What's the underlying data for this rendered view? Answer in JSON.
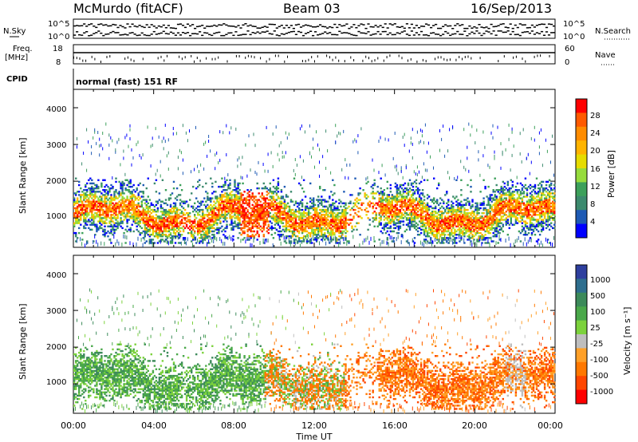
{
  "header": {
    "station": "McMurdo (fitACF)",
    "beam": "Beam 03",
    "date": "16/Sep/2013"
  },
  "sky_panel": {
    "left_label": "N.Sky",
    "right_label": "N.Search",
    "left_ticks": [
      "10^5",
      "10^0"
    ],
    "right_ticks": [
      "10^5",
      "10^0"
    ]
  },
  "freq_panel": {
    "left_label_1": "Freq.",
    "left_label_2": "[MHz]",
    "left_ticks": [
      "18",
      "8"
    ],
    "right_label": "Nave",
    "right_ticks": [
      "60",
      "0"
    ]
  },
  "cpid": {
    "label": "CPID",
    "value": "normal (fast) 151 RF"
  },
  "chart_data": [
    {
      "type": "heatmap",
      "panel": "power",
      "ylabel": "Slant Range [km]",
      "yticks": [
        "1000",
        "2000",
        "3000",
        "4000"
      ],
      "ylim": [
        200,
        4500
      ],
      "xlim": [
        0,
        24
      ],
      "colorbar": {
        "label": "Power [dB]",
        "ticks": [
          "28",
          "24",
          "20",
          "16",
          "12",
          "8",
          "4"
        ],
        "colors": [
          "#ff0000",
          "#ff5a00",
          "#ff8c00",
          "#ffb400",
          "#e6dc00",
          "#96dc3c",
          "#3ca05a",
          "#3c8a6e",
          "#1e5ab4",
          "#0000ff"
        ]
      }
    },
    {
      "type": "heatmap",
      "panel": "velocity",
      "ylabel": "Slant Range [km]",
      "yticks": [
        "1000",
        "2000",
        "3000",
        "4000"
      ],
      "ylim": [
        200,
        4500
      ],
      "xlim": [
        0,
        24
      ],
      "xlabel": "Time UT",
      "xticks": [
        "00:00",
        "04:00",
        "08:00",
        "12:00",
        "16:00",
        "20:00",
        "00:00"
      ],
      "colorbar": {
        "label": "Velocity [m s⁻¹]",
        "ticks": [
          "1000",
          "500",
          "100",
          "25",
          "-25",
          "-100",
          "-500",
          "-1000"
        ],
        "colors": [
          "#2e3f9e",
          "#2e6e8e",
          "#3c8a5a",
          "#4aa84a",
          "#7cd23c",
          "#bebebe",
          "#ffa028",
          "#ff7800",
          "#ff4600",
          "#ff0000"
        ]
      }
    }
  ]
}
